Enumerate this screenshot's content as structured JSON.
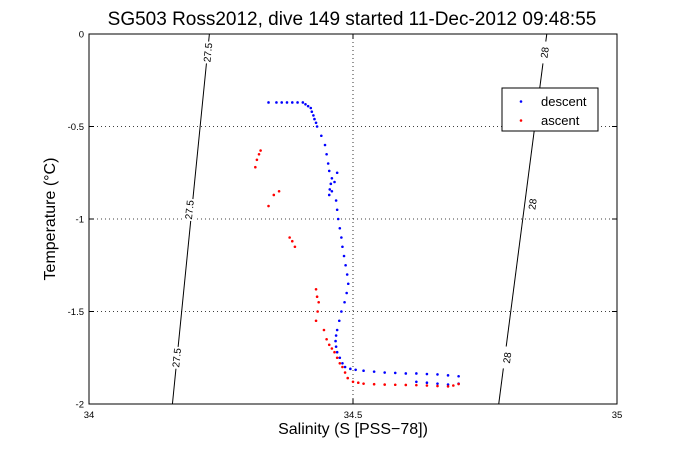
{
  "chart_data": {
    "type": "scatter",
    "title": "SG503 Ross2012, dive 149 started 11-Dec-2012 09:48:55",
    "xlabel": "Salinity (S [PSS−78])",
    "ylabel": "Temperature (°C)",
    "xlim": [
      34,
      35
    ],
    "ylim": [
      -2,
      0
    ],
    "xticks": [
      34,
      34.5,
      35
    ],
    "xtick_labels": [
      "34",
      "34.5",
      "35"
    ],
    "yticks": [
      0,
      -0.5,
      -1,
      -1.5,
      -2
    ],
    "ytick_labels": [
      "0",
      "-0.5",
      "-1",
      "-1.5",
      "-2"
    ],
    "grid": true,
    "legend_position": "top-right",
    "contours": [
      {
        "label": "27.5",
        "line": [
          [
            34.228,
            0
          ],
          [
            34.158,
            -2
          ]
        ],
        "label_positions": [
          [
            34.225,
            -0.1
          ],
          [
            34.19,
            -0.95
          ],
          [
            34.166,
            -1.75
          ]
        ]
      },
      {
        "label": "28",
        "line": [
          [
            34.867,
            0
          ],
          [
            34.776,
            -2
          ]
        ],
        "label_positions": [
          [
            34.863,
            -0.1
          ],
          [
            34.84,
            -0.92
          ],
          [
            34.792,
            -1.75
          ]
        ]
      }
    ],
    "series": [
      {
        "name": "descent",
        "color": "#0000ff",
        "points": [
          [
            34.34,
            -0.37
          ],
          [
            34.355,
            -0.37
          ],
          [
            34.365,
            -0.37
          ],
          [
            34.375,
            -0.37
          ],
          [
            34.385,
            -0.37
          ],
          [
            34.395,
            -0.37
          ],
          [
            34.405,
            -0.37
          ],
          [
            34.41,
            -0.38
          ],
          [
            34.415,
            -0.39
          ],
          [
            34.42,
            -0.4
          ],
          [
            34.422,
            -0.42
          ],
          [
            34.425,
            -0.44
          ],
          [
            34.427,
            -0.46
          ],
          [
            34.43,
            -0.48
          ],
          [
            34.432,
            -0.5
          ],
          [
            34.44,
            -0.55
          ],
          [
            34.447,
            -0.6
          ],
          [
            34.45,
            -0.65
          ],
          [
            34.453,
            -0.7
          ],
          [
            34.455,
            -0.74
          ],
          [
            34.46,
            -0.78
          ],
          [
            34.458,
            -0.81
          ],
          [
            34.456,
            -0.84
          ],
          [
            34.455,
            -0.87
          ],
          [
            34.46,
            -0.85
          ],
          [
            34.465,
            -0.8
          ],
          [
            34.47,
            -0.75
          ],
          [
            34.468,
            -0.9
          ],
          [
            34.47,
            -0.95
          ],
          [
            34.472,
            -1.0
          ],
          [
            34.475,
            -1.05
          ],
          [
            34.478,
            -1.1
          ],
          [
            34.48,
            -1.15
          ],
          [
            34.483,
            -1.2
          ],
          [
            34.486,
            -1.25
          ],
          [
            34.489,
            -1.3
          ],
          [
            34.491,
            -1.35
          ],
          [
            34.488,
            -1.4
          ],
          [
            34.484,
            -1.45
          ],
          [
            34.478,
            -1.5
          ],
          [
            34.474,
            -1.55
          ],
          [
            34.47,
            -1.6
          ],
          [
            34.468,
            -1.63
          ],
          [
            34.467,
            -1.66
          ],
          [
            34.468,
            -1.69
          ],
          [
            34.47,
            -1.72
          ],
          [
            34.475,
            -1.75
          ],
          [
            34.48,
            -1.78
          ],
          [
            34.485,
            -1.8
          ],
          [
            34.495,
            -1.81
          ],
          [
            34.505,
            -1.815
          ],
          [
            34.52,
            -1.82
          ],
          [
            34.54,
            -1.825
          ],
          [
            34.56,
            -1.83
          ],
          [
            34.58,
            -1.832
          ],
          [
            34.6,
            -1.835
          ],
          [
            34.62,
            -1.835
          ],
          [
            34.64,
            -1.838
          ],
          [
            34.66,
            -1.84
          ],
          [
            34.68,
            -1.845
          ],
          [
            34.7,
            -1.85
          ],
          [
            34.62,
            -1.88
          ],
          [
            34.64,
            -1.885
          ],
          [
            34.66,
            -1.89
          ],
          [
            34.68,
            -1.895
          ],
          [
            34.7,
            -1.89
          ]
        ]
      },
      {
        "name": "ascent",
        "color": "#ff0000",
        "points": [
          [
            34.325,
            -0.63
          ],
          [
            34.322,
            -0.65
          ],
          [
            34.318,
            -0.68
          ],
          [
            34.315,
            -0.72
          ],
          [
            34.36,
            -0.85
          ],
          [
            34.35,
            -0.87
          ],
          [
            34.34,
            -0.93
          ],
          [
            34.38,
            -1.1
          ],
          [
            34.385,
            -1.12
          ],
          [
            34.39,
            -1.15
          ],
          [
            34.43,
            -1.38
          ],
          [
            34.432,
            -1.42
          ],
          [
            34.435,
            -1.45
          ],
          [
            34.433,
            -1.5
          ],
          [
            34.43,
            -1.55
          ],
          [
            34.445,
            -1.6
          ],
          [
            34.45,
            -1.65
          ],
          [
            34.455,
            -1.68
          ],
          [
            34.46,
            -1.7
          ],
          [
            34.465,
            -1.72
          ],
          [
            34.47,
            -1.75
          ],
          [
            34.475,
            -1.78
          ],
          [
            34.48,
            -1.8
          ],
          [
            34.485,
            -1.83
          ],
          [
            34.49,
            -1.86
          ],
          [
            34.5,
            -1.88
          ],
          [
            34.51,
            -1.885
          ],
          [
            34.52,
            -1.89
          ],
          [
            34.54,
            -1.893
          ],
          [
            34.56,
            -1.895
          ],
          [
            34.58,
            -1.896
          ],
          [
            34.6,
            -1.897
          ],
          [
            34.62,
            -1.898
          ],
          [
            34.64,
            -1.9
          ],
          [
            34.66,
            -1.903
          ],
          [
            34.68,
            -1.905
          ],
          [
            34.69,
            -1.9
          ],
          [
            34.7,
            -1.892
          ]
        ]
      }
    ]
  }
}
